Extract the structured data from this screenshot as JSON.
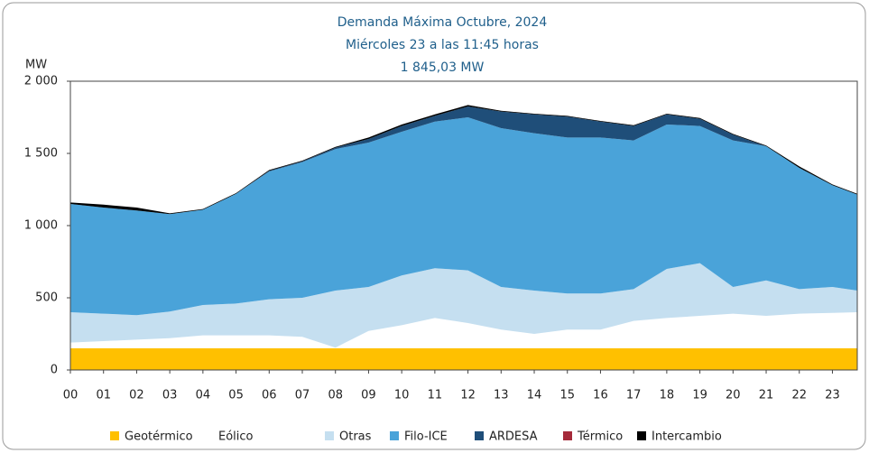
{
  "chart_data": {
    "type": "stacked_area",
    "title": "Demanda Máxima Octubre, 2024",
    "subtitle": [
      "Miércoles 23 a las 11:45 horas",
      "1 845,03 MW"
    ],
    "y_label": "MW",
    "x": [
      0,
      1,
      2,
      3,
      4,
      5,
      6,
      7,
      8,
      9,
      10,
      11,
      12,
      13,
      14,
      15,
      16,
      17,
      18,
      19,
      20,
      21,
      22,
      23,
      23.75
    ],
    "xlim": [
      0,
      23.75
    ],
    "xticks": [
      {
        "value": 0,
        "label": "00"
      },
      {
        "value": 1,
        "label": "01"
      },
      {
        "value": 2,
        "label": "02"
      },
      {
        "value": 3,
        "label": "03"
      },
      {
        "value": 4,
        "label": "04"
      },
      {
        "value": 5,
        "label": "05"
      },
      {
        "value": 6,
        "label": "06"
      },
      {
        "value": 7,
        "label": "07"
      },
      {
        "value": 8,
        "label": "08"
      },
      {
        "value": 9,
        "label": "09"
      },
      10,
      11,
      12,
      13,
      14,
      15,
      16,
      17,
      18,
      19,
      20,
      21,
      22,
      23
    ],
    "ylim": [
      0,
      2000
    ],
    "yticks": [
      0,
      500,
      {
        "value": 1000,
        "label": "1 000"
      },
      {
        "value": 1500,
        "label": "1 500"
      },
      {
        "value": 2000,
        "label": "2 000"
      }
    ],
    "legend": "bottom",
    "series": [
      {
        "name": "Geotérmico",
        "color": "#ffc000",
        "values": [
          150,
          150,
          150,
          150,
          150,
          150,
          150,
          150,
          150,
          150,
          150,
          150,
          150,
          150,
          150,
          150,
          150,
          150,
          150,
          150,
          150,
          150,
          150,
          150,
          150
        ]
      },
      {
        "name": "Eólico",
        "color": "#ffffff",
        "values": [
          40,
          50,
          60,
          70,
          90,
          90,
          90,
          80,
          5,
          120,
          160,
          210,
          175,
          130,
          100,
          130,
          130,
          190,
          210,
          225,
          240,
          225,
          240,
          245,
          250
        ]
      },
      {
        "name": "Otras",
        "color": "#c5dff0",
        "values": [
          210,
          190,
          170,
          185,
          210,
          220,
          250,
          270,
          395,
          305,
          345,
          345,
          365,
          295,
          300,
          250,
          250,
          220,
          340,
          365,
          185,
          245,
          170,
          180,
          150
        ]
      },
      {
        "name": "Filo-ICE",
        "color": "#4aa3d9",
        "values": [
          750,
          735,
          725,
          675,
          660,
          760,
          885,
          940,
          980,
          1000,
          995,
          1015,
          1060,
          1100,
          1090,
          1080,
          1080,
          1030,
          1000,
          950,
          1015,
          930,
          840,
          705,
          665
        ]
      },
      {
        "name": "ARDESA",
        "color": "#1f4e79",
        "values": [
          0,
          0,
          0,
          0,
          0,
          0,
          5,
          5,
          10,
          25,
          40,
          40,
          75,
          115,
          130,
          145,
          110,
          100,
          70,
          50,
          40,
          0,
          0,
          0,
          0
        ]
      },
      {
        "name": "Térmico",
        "color": "#a52a3a",
        "values": [
          0,
          0,
          0,
          0,
          0,
          0,
          0,
          0,
          0,
          0,
          0,
          0,
          0,
          0,
          0,
          0,
          0,
          0,
          0,
          0,
          0,
          0,
          0,
          0,
          0
        ]
      },
      {
        "name": "Intercambio",
        "color": "#000000",
        "values": [
          10,
          20,
          20,
          5,
          5,
          5,
          5,
          5,
          5,
          10,
          10,
          10,
          10,
          5,
          5,
          5,
          5,
          5,
          5,
          5,
          5,
          5,
          10,
          5,
          5
        ]
      }
    ]
  }
}
